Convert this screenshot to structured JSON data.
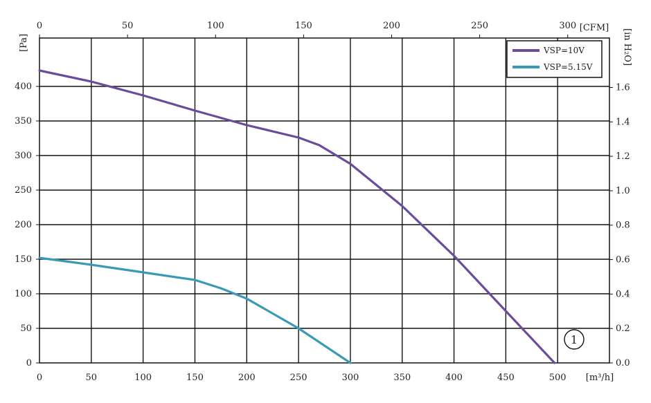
{
  "chart_data": {
    "type": "line",
    "x_bottom": {
      "label": "[m³/h]",
      "range": [
        0,
        550
      ],
      "ticks": [
        "0",
        "50",
        "100",
        "150",
        "200",
        "250",
        "300",
        "350",
        "400",
        "450",
        "500"
      ]
    },
    "x_top": {
      "label": "[CFM]",
      "range": [
        0,
        323.7
      ],
      "ticks": [
        "0",
        "50",
        "100",
        "150",
        "200",
        "250",
        "300"
      ]
    },
    "y_left": {
      "label": "[Pa]",
      "range": [
        0,
        470
      ],
      "ticks": [
        "0",
        "50",
        "100",
        "150",
        "200",
        "250",
        "300",
        "350",
        "400"
      ]
    },
    "y_right": {
      "label": "[in H₂O]",
      "range": [
        0,
        1.887
      ],
      "ticks": [
        "0.0",
        "0.2",
        "0.4",
        "0.6",
        "0.8",
        "1.0",
        "1.2",
        "1.4",
        "1.6"
      ]
    },
    "grid": true,
    "legend": "top-right",
    "series": [
      {
        "name": "VSP=10V",
        "color": "#6b4c9a",
        "x": [
          0,
          50,
          100,
          150,
          200,
          250,
          270,
          300,
          350,
          400,
          450,
          497
        ],
        "y": [
          423,
          407,
          387,
          365,
          344,
          326,
          315,
          288,
          227,
          155,
          75,
          0
        ]
      },
      {
        "name": "VSP=5.15V",
        "color": "#3a9ab5",
        "x": [
          0,
          50,
          100,
          150,
          175,
          200,
          250,
          300
        ],
        "y": [
          152,
          142,
          131,
          120,
          108,
          93,
          50,
          0
        ]
      }
    ],
    "annotation": "①"
  }
}
